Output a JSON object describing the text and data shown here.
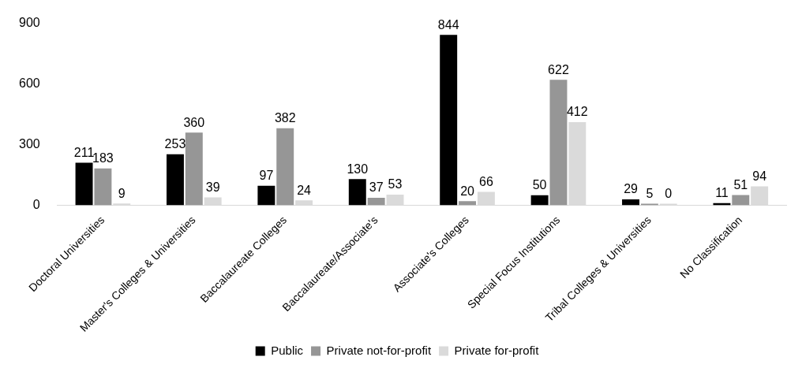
{
  "chart_data": {
    "type": "bar",
    "categories": [
      "Doctoral Universities",
      "Master's Colleges & Universities",
      "Baccalaureate Colleges",
      "Baccalaureate/Associate's",
      "Associate's Colleges",
      "Special Focus Institutions",
      "Tribal Colleges & Universities",
      "No Classification"
    ],
    "series": [
      {
        "name": "Public",
        "color": "#000000",
        "values": [
          211,
          253,
          97,
          130,
          844,
          50,
          29,
          11
        ]
      },
      {
        "name": "Private not-for-profit",
        "color": "#969696",
        "values": [
          183,
          360,
          382,
          37,
          20,
          622,
          5,
          51
        ]
      },
      {
        "name": "Private for-profit",
        "color": "#dadada",
        "values": [
          9,
          39,
          24,
          53,
          66,
          412,
          0,
          94
        ]
      }
    ],
    "ylim": [
      0,
      900
    ],
    "yticks": [
      0,
      300,
      600,
      900
    ],
    "grid": false,
    "legend": "bottom",
    "data_labels": true
  }
}
